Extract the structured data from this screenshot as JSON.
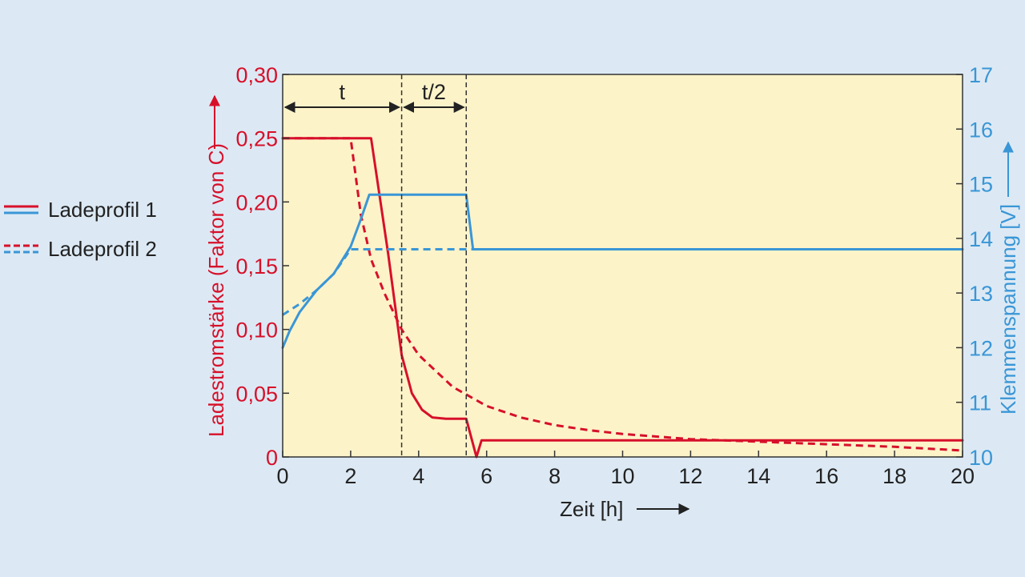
{
  "chart_data": {
    "type": "line",
    "xlabel": "Zeit [h]",
    "ylabel_left": "Ladestromstärke (Faktor von C)",
    "ylabel_right": "Klemmenspannung [V]",
    "xlim": [
      0,
      20
    ],
    "ylim_left": [
      0,
      0.3
    ],
    "ylim_right": [
      10,
      17
    ],
    "x_ticks": [
      "0",
      "2",
      "4",
      "6",
      "8",
      "10",
      "12",
      "14",
      "16",
      "18",
      "20"
    ],
    "y_left_ticks": [
      "0",
      "0,05",
      "0,10",
      "0,15",
      "0,20",
      "0,25",
      "0,30"
    ],
    "y_right_ticks": [
      "10",
      "11",
      "12",
      "13",
      "14",
      "15",
      "16",
      "17"
    ],
    "grid": false,
    "legend_position": "left",
    "legend": [
      {
        "label": "Ladeprofil 1",
        "style": "solid"
      },
      {
        "label": "Ladeprofil 2",
        "style": "dashed"
      }
    ],
    "annotations": {
      "t_label": "t",
      "t_half_label": "t/2",
      "t_end_x": 3.5,
      "t_half_end_x": 5.4
    },
    "colors": {
      "current": "#d7102a",
      "voltage": "#3a96d6",
      "plot_background": "#fdf3c9",
      "page_background": "#dce9f4"
    },
    "series": [
      {
        "profile": "Ladeprofil 1",
        "quantity": "current",
        "axis": "left",
        "style": "solid",
        "x": [
          0,
          2.6,
          3.1,
          3.5,
          3.8,
          4.1,
          4.4,
          4.8,
          5.4,
          5.7,
          5.85,
          20
        ],
        "y": [
          0.25,
          0.25,
          0.16,
          0.08,
          0.05,
          0.037,
          0.031,
          0.03,
          0.03,
          0.0,
          0.013,
          0.013
        ]
      },
      {
        "profile": "Ladeprofil 2",
        "quantity": "current",
        "axis": "left",
        "style": "dashed",
        "x": [
          0,
          2.0,
          2.3,
          2.6,
          3.0,
          3.5,
          4.0,
          5.0,
          6.0,
          7.0,
          8.0,
          9.0,
          10.0,
          12.0,
          14.0,
          16.0,
          18.0,
          20.0
        ],
        "y": [
          0.25,
          0.25,
          0.19,
          0.155,
          0.128,
          0.1,
          0.08,
          0.055,
          0.04,
          0.031,
          0.025,
          0.021,
          0.018,
          0.014,
          0.012,
          0.01,
          0.008,
          0.005
        ]
      },
      {
        "profile": "Ladeprofil 1",
        "quantity": "voltage",
        "axis": "right",
        "style": "solid",
        "x": [
          0,
          0.2,
          0.5,
          1.0,
          1.5,
          2.0,
          2.3,
          2.55,
          5.4,
          5.6,
          20
        ],
        "y": [
          12.0,
          12.3,
          12.65,
          13.05,
          13.35,
          13.85,
          14.35,
          14.8,
          14.8,
          13.8,
          13.8
        ]
      },
      {
        "profile": "Ladeprofil 2",
        "quantity": "voltage",
        "axis": "right",
        "style": "dashed",
        "x": [
          0,
          0.5,
          1.0,
          1.5,
          2.0,
          20
        ],
        "y": [
          12.6,
          12.8,
          13.05,
          13.35,
          13.8,
          13.8
        ]
      }
    ]
  }
}
